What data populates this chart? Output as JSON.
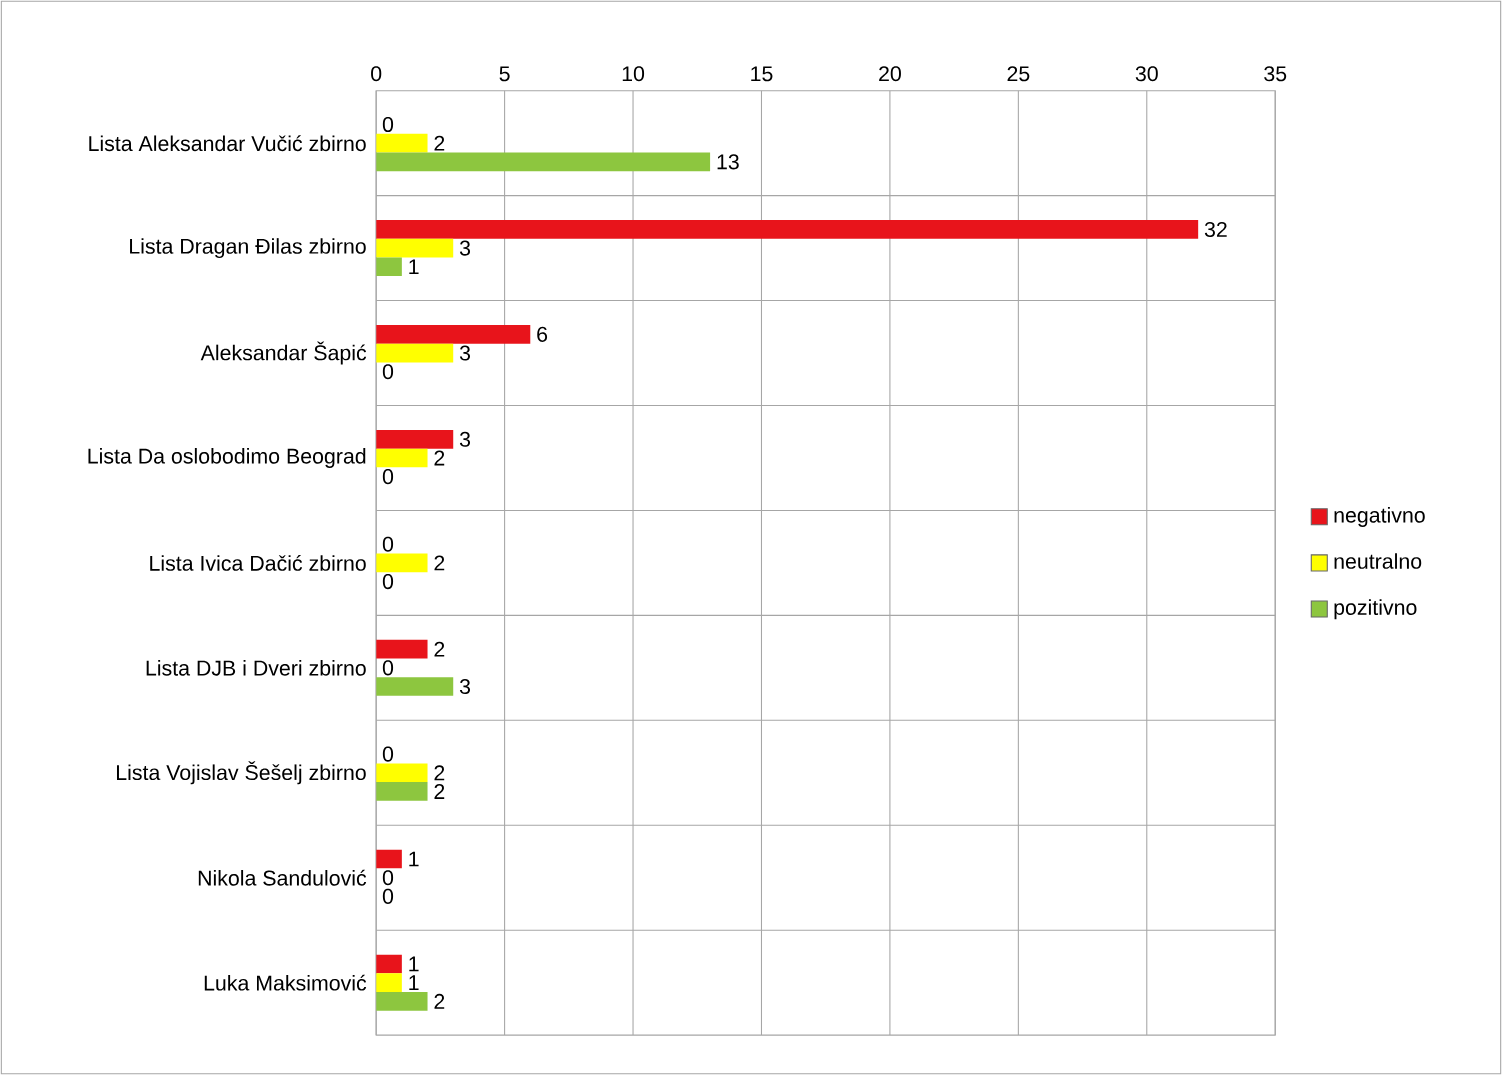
{
  "chart_data": {
    "type": "bar",
    "orientation": "horizontal",
    "categories": [
      "Lista Aleksandar Vučić zbirno",
      "Lista Dragan Đilas zbirno",
      "Aleksandar Šapić",
      "Lista Da oslobodimo Beograd",
      "Lista Ivica Dačić zbirno",
      "Lista DJB i Dveri zbirno",
      "Lista Vojislav Šešelj zbirno",
      "Nikola Sandulović",
      "Luka Maksimović"
    ],
    "series": [
      {
        "name": "negativno",
        "color": "#e8141b",
        "values": [
          0,
          32,
          6,
          3,
          0,
          2,
          0,
          1,
          1
        ],
        "value_labels": [
          "0",
          "32",
          "6",
          "3",
          "0",
          "2",
          "0",
          "1",
          "1"
        ]
      },
      {
        "name": "neutralno",
        "color": "#ffff00",
        "values": [
          2,
          3,
          3,
          2,
          2,
          0,
          2,
          0,
          1
        ],
        "value_labels": [
          "2",
          "3",
          "3",
          "2",
          "2",
          "0",
          "2",
          "0",
          "1"
        ]
      },
      {
        "name": "pozitivno",
        "color": "#8dc63f",
        "values": [
          13,
          1,
          0,
          0,
          0,
          3,
          2,
          0,
          2
        ],
        "value_labels": [
          "13",
          "1",
          "0",
          "0",
          "0",
          "3",
          "2",
          "0",
          "2"
        ]
      }
    ],
    "xlim": [
      0,
      35
    ],
    "xticks": [
      0,
      5,
      10,
      15,
      20,
      25,
      30,
      35
    ],
    "grid": true,
    "legend": "right"
  }
}
